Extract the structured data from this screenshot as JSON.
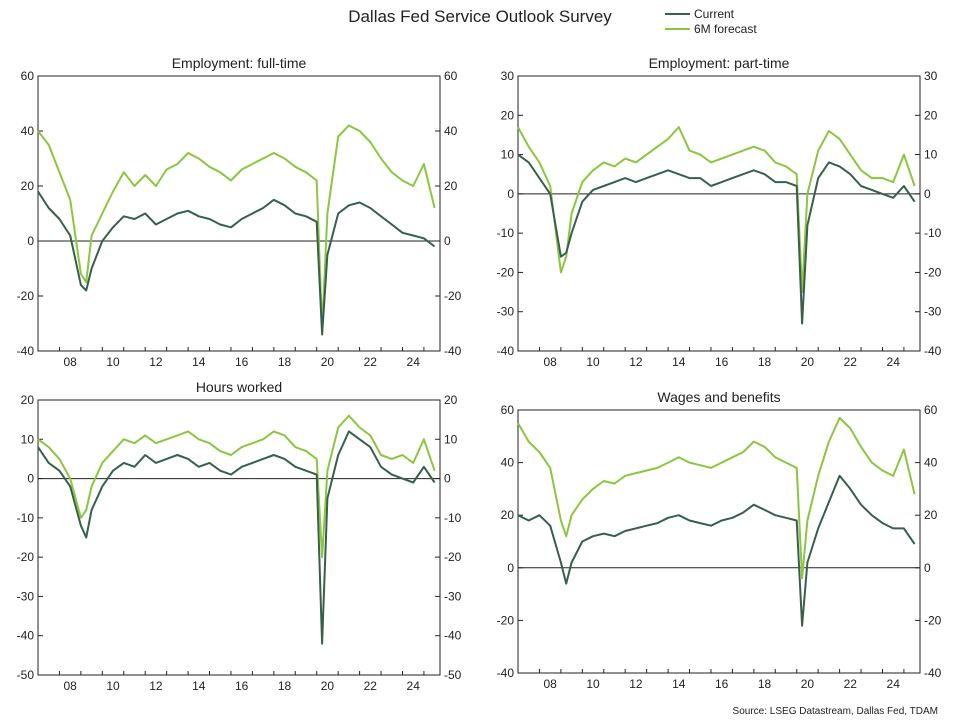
{
  "title": "Dallas Fed Service Outlook Survey",
  "source": "Source: LSEG Datastream, Dallas Fed, TDAM",
  "colors": {
    "current": "#37604c",
    "forecast": "#8cc63f",
    "axis": "#222222",
    "zero": "#222222"
  },
  "legend": [
    {
      "key": "current",
      "label": "Current"
    },
    {
      "key": "forecast",
      "label": "6M forecast"
    }
  ],
  "x_tick_labels": [
    "08",
    "10",
    "12",
    "14",
    "16",
    "18",
    "20",
    "22",
    "24"
  ],
  "chart_data": [
    {
      "type": "line",
      "title": "Employment: full-time",
      "xlim": [
        2007.0,
        2025.75
      ],
      "ylim": [
        -40,
        60
      ],
      "yticks": [
        -40,
        -20,
        0,
        20,
        40,
        60
      ],
      "x": [
        2007.0,
        2007.5,
        2008.0,
        2008.5,
        2009.0,
        2009.25,
        2009.5,
        2010.0,
        2010.5,
        2011.0,
        2011.5,
        2012.0,
        2012.5,
        2013.0,
        2013.5,
        2014.0,
        2014.5,
        2015.0,
        2015.5,
        2016.0,
        2016.5,
        2017.0,
        2017.5,
        2018.0,
        2018.5,
        2019.0,
        2019.5,
        2020.0,
        2020.25,
        2020.5,
        2021.0,
        2021.5,
        2022.0,
        2022.5,
        2023.0,
        2023.5,
        2024.0,
        2024.5,
        2025.0,
        2025.5
      ],
      "series": [
        {
          "name": "Current",
          "key": "current",
          "values": [
            18,
            12,
            8,
            2,
            -16,
            -18,
            -10,
            0,
            5,
            9,
            8,
            10,
            6,
            8,
            10,
            11,
            9,
            8,
            6,
            5,
            8,
            10,
            12,
            15,
            13,
            10,
            9,
            7,
            -34,
            -5,
            10,
            13,
            14,
            12,
            9,
            6,
            3,
            2,
            1,
            -2
          ]
        },
        {
          "name": "6M forecast",
          "key": "forecast",
          "values": [
            40,
            35,
            25,
            15,
            -12,
            -15,
            2,
            10,
            18,
            25,
            20,
            24,
            20,
            26,
            28,
            32,
            30,
            27,
            25,
            22,
            26,
            28,
            30,
            32,
            30,
            27,
            25,
            22,
            -32,
            10,
            38,
            42,
            40,
            36,
            30,
            25,
            22,
            20,
            28,
            12
          ]
        }
      ]
    },
    {
      "type": "line",
      "title": "Employment: part-time",
      "xlim": [
        2007.0,
        2025.75
      ],
      "ylim": [
        -40,
        30
      ],
      "yticks": [
        -40,
        -30,
        -20,
        -10,
        0,
        10,
        20,
        30
      ],
      "x": [
        2007.0,
        2007.5,
        2008.0,
        2008.5,
        2009.0,
        2009.25,
        2009.5,
        2010.0,
        2010.5,
        2011.0,
        2011.5,
        2012.0,
        2012.5,
        2013.0,
        2013.5,
        2014.0,
        2014.5,
        2015.0,
        2015.5,
        2016.0,
        2016.5,
        2017.0,
        2017.5,
        2018.0,
        2018.5,
        2019.0,
        2019.5,
        2020.0,
        2020.25,
        2020.5,
        2021.0,
        2021.5,
        2022.0,
        2022.5,
        2023.0,
        2023.5,
        2024.0,
        2024.5,
        2025.0,
        2025.5
      ],
      "series": [
        {
          "name": "Current",
          "key": "current",
          "values": [
            10,
            8,
            4,
            0,
            -16,
            -15,
            -10,
            -2,
            1,
            2,
            3,
            4,
            3,
            4,
            5,
            6,
            5,
            4,
            4,
            2,
            3,
            4,
            5,
            6,
            5,
            3,
            3,
            2,
            -33,
            -8,
            4,
            8,
            7,
            5,
            2,
            1,
            0,
            -1,
            2,
            -2
          ]
        },
        {
          "name": "6M forecast",
          "key": "forecast",
          "values": [
            17,
            12,
            8,
            2,
            -20,
            -16,
            -5,
            3,
            6,
            8,
            7,
            9,
            8,
            10,
            12,
            14,
            17,
            11,
            10,
            8,
            9,
            10,
            11,
            12,
            11,
            8,
            7,
            5,
            -25,
            0,
            11,
            16,
            14,
            10,
            6,
            4,
            4,
            3,
            10,
            2
          ]
        }
      ]
    },
    {
      "type": "line",
      "title": "Hours worked",
      "xlim": [
        2007.0,
        2025.75
      ],
      "ylim": [
        -50,
        20
      ],
      "yticks": [
        -50,
        -40,
        -30,
        -20,
        -10,
        0,
        10,
        20
      ],
      "x": [
        2007.0,
        2007.5,
        2008.0,
        2008.5,
        2009.0,
        2009.25,
        2009.5,
        2010.0,
        2010.5,
        2011.0,
        2011.5,
        2012.0,
        2012.5,
        2013.0,
        2013.5,
        2014.0,
        2014.5,
        2015.0,
        2015.5,
        2016.0,
        2016.5,
        2017.0,
        2017.5,
        2018.0,
        2018.5,
        2019.0,
        2019.5,
        2020.0,
        2020.25,
        2020.5,
        2021.0,
        2021.5,
        2022.0,
        2022.5,
        2023.0,
        2023.5,
        2024.0,
        2024.5,
        2025.0,
        2025.5
      ],
      "series": [
        {
          "name": "Current",
          "key": "current",
          "values": [
            8,
            4,
            2,
            -2,
            -12,
            -15,
            -8,
            -2,
            2,
            4,
            3,
            6,
            4,
            5,
            6,
            5,
            3,
            4,
            2,
            1,
            3,
            4,
            5,
            6,
            5,
            3,
            2,
            1,
            -42,
            -5,
            6,
            12,
            10,
            8,
            3,
            1,
            0,
            -1,
            3,
            -1
          ]
        },
        {
          "name": "6M forecast",
          "key": "forecast",
          "values": [
            10,
            8,
            5,
            0,
            -10,
            -8,
            -2,
            4,
            7,
            10,
            9,
            11,
            9,
            10,
            11,
            12,
            10,
            9,
            7,
            6,
            8,
            9,
            10,
            12,
            11,
            8,
            7,
            5,
            -20,
            2,
            13,
            16,
            13,
            11,
            6,
            5,
            6,
            4,
            10,
            2
          ]
        }
      ]
    },
    {
      "type": "line",
      "title": "Wages and benefits",
      "xlim": [
        2007.0,
        2025.75
      ],
      "ylim": [
        -40,
        60
      ],
      "yticks": [
        -40,
        -20,
        0,
        20,
        40,
        60
      ],
      "x": [
        2007.0,
        2007.5,
        2008.0,
        2008.5,
        2009.0,
        2009.25,
        2009.5,
        2010.0,
        2010.5,
        2011.0,
        2011.5,
        2012.0,
        2012.5,
        2013.0,
        2013.5,
        2014.0,
        2014.5,
        2015.0,
        2015.5,
        2016.0,
        2016.5,
        2017.0,
        2017.5,
        2018.0,
        2018.5,
        2019.0,
        2019.5,
        2020.0,
        2020.25,
        2020.5,
        2021.0,
        2021.5,
        2022.0,
        2022.5,
        2023.0,
        2023.5,
        2024.0,
        2024.5,
        2025.0,
        2025.5
      ],
      "series": [
        {
          "name": "Current",
          "key": "current",
          "values": [
            20,
            18,
            20,
            16,
            2,
            -6,
            2,
            10,
            12,
            13,
            12,
            14,
            15,
            16,
            17,
            19,
            20,
            18,
            17,
            16,
            18,
            19,
            21,
            24,
            22,
            20,
            19,
            18,
            -22,
            2,
            15,
            25,
            35,
            30,
            24,
            20,
            17,
            15,
            15,
            9
          ]
        },
        {
          "name": "6M forecast",
          "key": "forecast",
          "values": [
            55,
            48,
            44,
            38,
            18,
            12,
            20,
            26,
            30,
            33,
            32,
            35,
            36,
            37,
            38,
            40,
            42,
            40,
            39,
            38,
            40,
            42,
            44,
            48,
            46,
            42,
            40,
            38,
            -4,
            18,
            35,
            48,
            57,
            53,
            46,
            40,
            37,
            35,
            45,
            28
          ]
        }
      ]
    }
  ]
}
